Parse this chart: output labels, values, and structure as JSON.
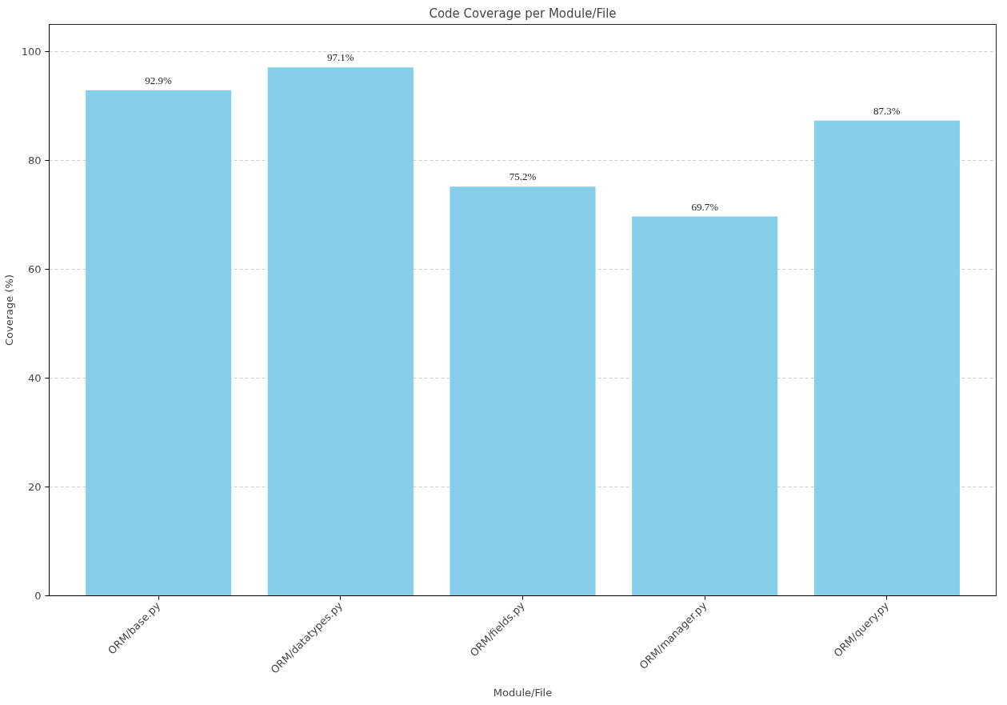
{
  "chart_data": {
    "type": "bar",
    "title": "Code Coverage per Module/File",
    "xlabel": "Module/File",
    "ylabel": "Coverage (%)",
    "categories": [
      "ORM/base.py",
      "ORM/datatypes.py",
      "ORM/fields.py",
      "ORM/manager.py",
      "ORM/query.py"
    ],
    "values": [
      92.9,
      97.1,
      75.2,
      69.7,
      87.3
    ],
    "value_labels": [
      "92.9%",
      "97.1%",
      "75.2%",
      "69.7%",
      "87.3%"
    ],
    "color": "#87ceeb",
    "ylim": [
      0,
      105
    ],
    "yticks": [
      0,
      20,
      40,
      60,
      80,
      100
    ],
    "grid": "y"
  }
}
